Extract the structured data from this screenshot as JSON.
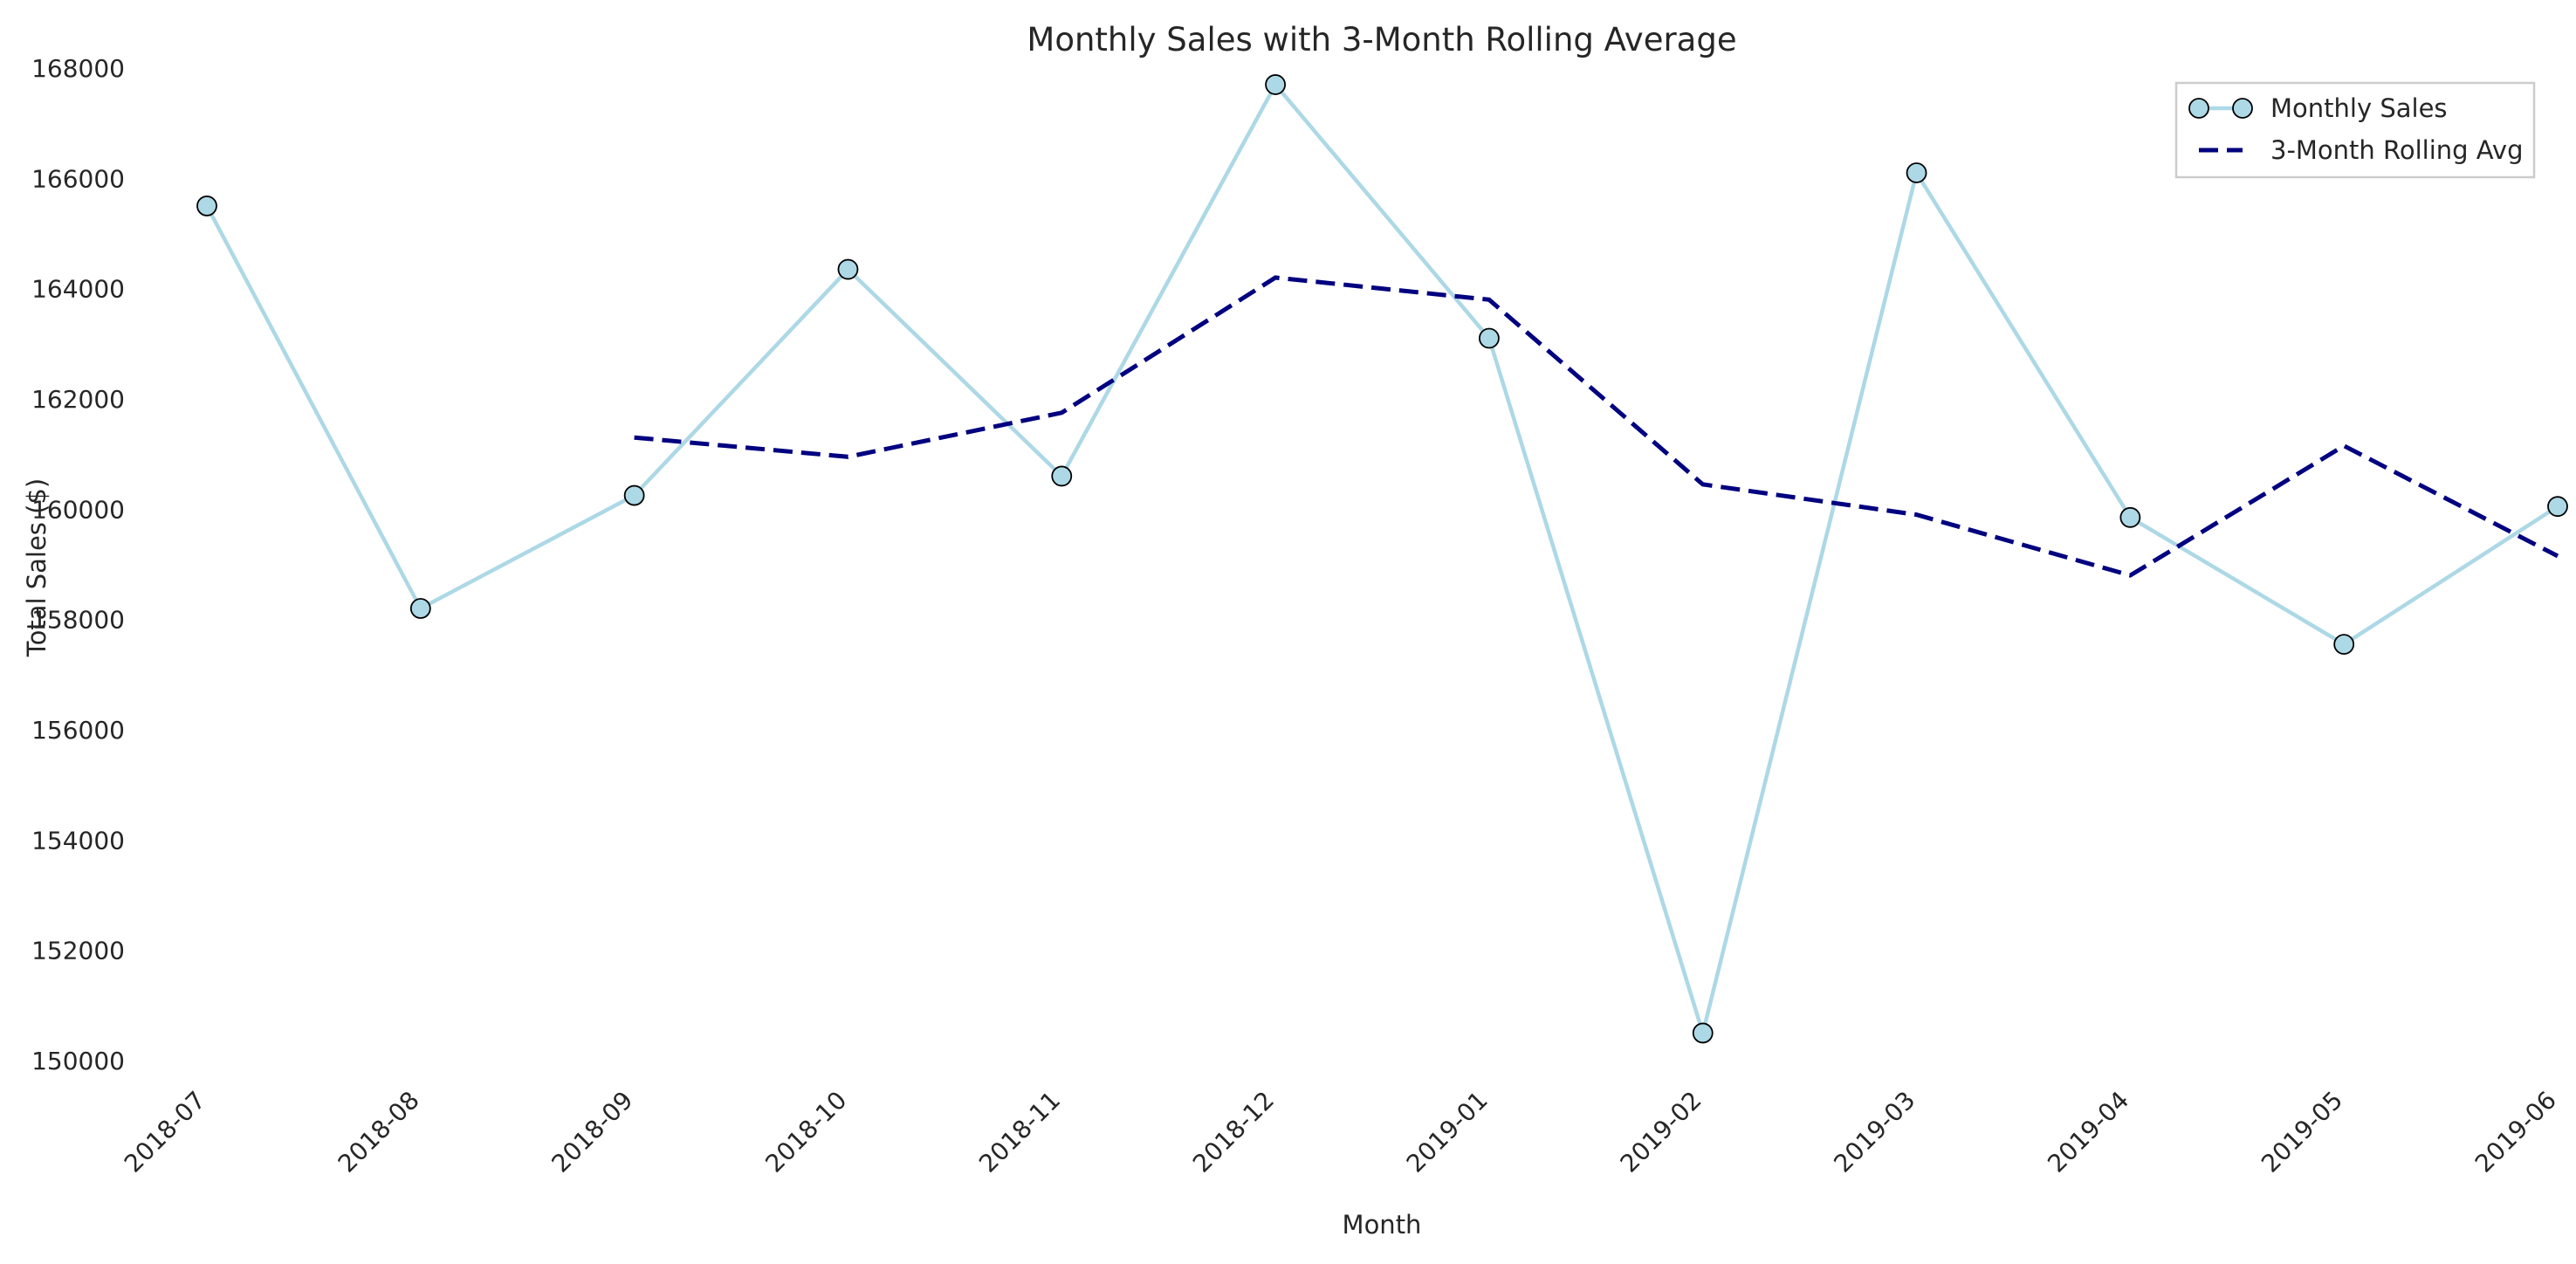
{
  "chart_data": {
    "type": "line",
    "title": "Monthly Sales with 3-Month Rolling Average",
    "xlabel": "Month",
    "ylabel": "Total Sales ($)",
    "categories": [
      "2018-07",
      "2018-08",
      "2018-09",
      "2018-10",
      "2018-11",
      "2018-12",
      "2019-01",
      "2019-02",
      "2019-03",
      "2019-04",
      "2019-05",
      "2019-06"
    ],
    "ylim": [
      150000,
      168000
    ],
    "yticks": [
      150000,
      152000,
      154000,
      156000,
      158000,
      160000,
      162000,
      164000,
      166000,
      168000
    ],
    "grid": false,
    "legend_position": "top-right",
    "series": [
      {
        "name": "Monthly Sales",
        "style": "solid line with circle markers",
        "color": "#add8e6",
        "marker_edge_color": "#000000",
        "values": [
          165500,
          158200,
          160250,
          164350,
          160600,
          167700,
          163100,
          150500,
          166100,
          159850,
          157550,
          160050
        ]
      },
      {
        "name": "3-Month Rolling Avg",
        "style": "dashed line",
        "color": "#000080",
        "values": [
          null,
          null,
          161300,
          160950,
          161750,
          164200,
          163800,
          160450,
          159900,
          158800,
          161150,
          159150
        ]
      }
    ]
  }
}
